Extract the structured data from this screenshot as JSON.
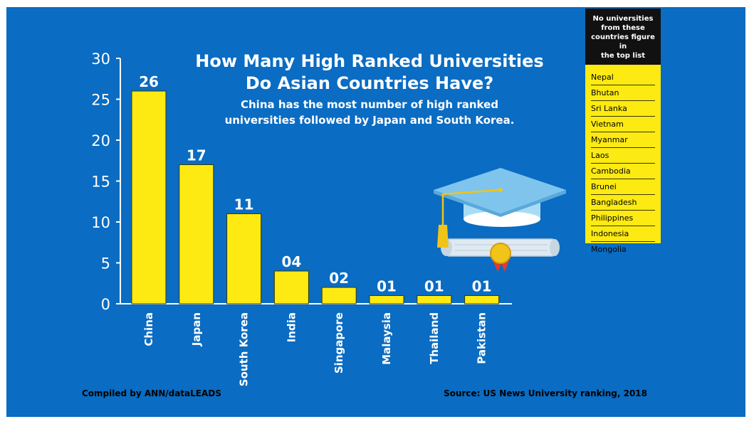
{
  "title": {
    "line1": "How Many High Ranked Universities",
    "line2": "Do Asian Countries Have?"
  },
  "subtitle": {
    "line1": "China has the most number of high ranked",
    "line2": "universities followed by Japan and South Korea."
  },
  "credit": "Compiled by ANN/dataLEADS",
  "source": "Source: US News University ranking, 2018",
  "sidebar": {
    "header": [
      "No universities",
      "from these",
      "countries figure in",
      "the top list"
    ],
    "countries": [
      "Nepal",
      "Bhutan",
      "Sri Lanka",
      "Vietnam",
      "Myanmar",
      "Laos",
      "Cambodia",
      "Brunei",
      "Bangladesh",
      "Philippines",
      "Indonesia",
      "Mongolia"
    ]
  },
  "colors": {
    "background": "#0a6cc2",
    "bar": "#fcea12",
    "sidebar_header": "#111111"
  },
  "icon": "graduation-cap-diploma-icon",
  "chart_data": {
    "type": "bar",
    "categories": [
      "China",
      "Japan",
      "South Korea",
      "India",
      "Singapore",
      "Malaysia",
      "Thailand",
      "Pakistan"
    ],
    "values": [
      26,
      17,
      11,
      4,
      2,
      1,
      1,
      1
    ],
    "data_labels": [
      "26",
      "17",
      "11",
      "04",
      "02",
      "01",
      "01",
      "01"
    ],
    "yticks": [
      0,
      5,
      10,
      15,
      20,
      25,
      30
    ],
    "ylim": [
      0,
      30
    ],
    "grid": false,
    "legend": "none"
  }
}
